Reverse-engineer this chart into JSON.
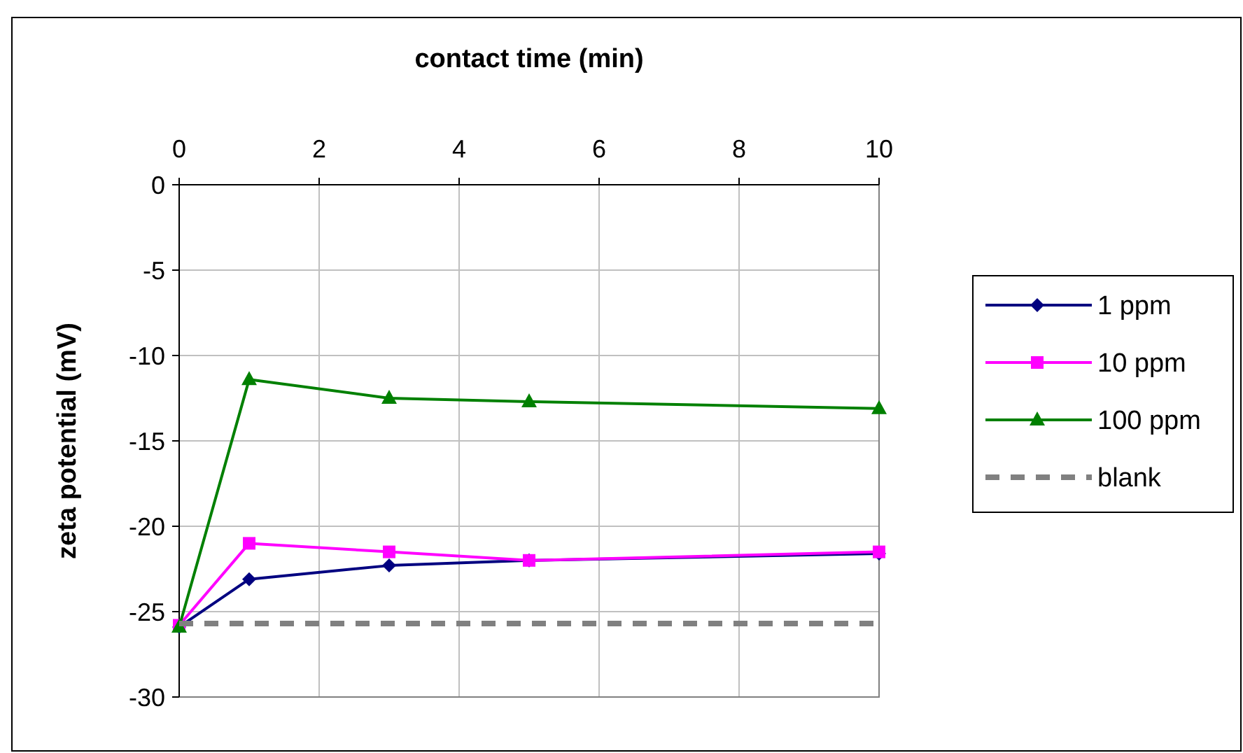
{
  "chart_data": {
    "type": "line",
    "xlabel": "contact time (min)",
    "ylabel": "zeta potential (mV)",
    "x": [
      0,
      1,
      3,
      5,
      10
    ],
    "xlim": [
      0,
      10
    ],
    "xticks": [
      0,
      2,
      4,
      6,
      8,
      10
    ],
    "ylim": [
      -30,
      0
    ],
    "yticks": [
      -30,
      -25,
      -20,
      -15,
      -10,
      -5,
      0
    ],
    "grid": true,
    "legend": "right",
    "series": [
      {
        "name": "1 ppm",
        "color": "#000080",
        "marker": "diamond",
        "values": [
          -25.9,
          -23.1,
          -22.3,
          -22.0,
          -21.6
        ]
      },
      {
        "name": "10 ppm",
        "color": "#ff00ff",
        "marker": "square",
        "values": [
          -25.8,
          -21.0,
          -21.5,
          -22.0,
          -21.5
        ]
      },
      {
        "name": "100 ppm",
        "color": "#008000",
        "marker": "triangle",
        "values": [
          -25.9,
          -11.4,
          -12.5,
          -12.7,
          -13.1
        ]
      },
      {
        "name": "blank",
        "color": "#808080",
        "marker": "none",
        "line_style": "dashed",
        "x": [
          0,
          10
        ],
        "values": [
          -25.7,
          -25.7
        ]
      }
    ]
  }
}
